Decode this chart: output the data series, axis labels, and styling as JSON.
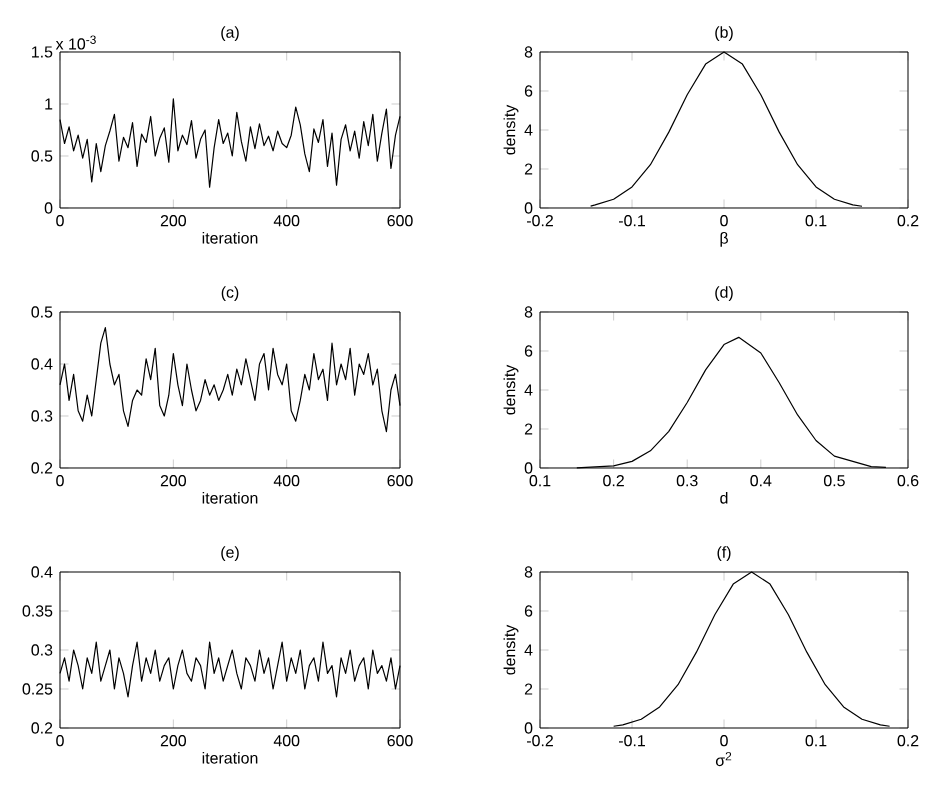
{
  "chart_data": [
    {
      "type": "line",
      "title": "(a)",
      "xlabel": "iteration",
      "annotations": [
        "x 10$^{-3}$"
      ],
      "xlim": [
        0,
        600
      ],
      "ylim": [
        0,
        1.5
      ],
      "xticks": [
        0,
        200,
        400,
        600
      ],
      "yticks": [
        0,
        0.5,
        1,
        1.5
      ],
      "series": [
        {
          "color": "#000000",
          "x": [
            0,
            8,
            16,
            24,
            32,
            40,
            48,
            56,
            64,
            72,
            80,
            88,
            96,
            104,
            112,
            120,
            128,
            136,
            144,
            152,
            160,
            168,
            176,
            184,
            192,
            200,
            208,
            216,
            224,
            232,
            240,
            248,
            256,
            264,
            272,
            280,
            288,
            296,
            304,
            312,
            320,
            328,
            336,
            344,
            352,
            360,
            368,
            376,
            384,
            392,
            400,
            408,
            416,
            424,
            432,
            440,
            448,
            456,
            464,
            472,
            480,
            488,
            496,
            504,
            512,
            520,
            528,
            536,
            544,
            552,
            560,
            568,
            576,
            584,
            592,
            600
          ],
          "values": [
            0.85,
            0.62,
            0.78,
            0.55,
            0.7,
            0.48,
            0.66,
            0.25,
            0.62,
            0.35,
            0.6,
            0.74,
            0.9,
            0.45,
            0.68,
            0.58,
            0.82,
            0.4,
            0.71,
            0.63,
            0.88,
            0.5,
            0.67,
            0.77,
            0.44,
            1.05,
            0.55,
            0.7,
            0.61,
            0.84,
            0.48,
            0.66,
            0.75,
            0.2,
            0.58,
            0.85,
            0.62,
            0.72,
            0.5,
            0.92,
            0.64,
            0.45,
            0.78,
            0.57,
            0.81,
            0.6,
            0.69,
            0.55,
            0.74,
            0.62,
            0.58,
            0.7,
            0.97,
            0.8,
            0.52,
            0.35,
            0.76,
            0.63,
            0.85,
            0.4,
            0.72,
            0.22,
            0.66,
            0.8,
            0.55,
            0.74,
            0.48,
            0.83,
            0.6,
            0.9,
            0.45,
            0.72,
            0.95,
            0.38,
            0.7,
            0.88
          ]
        }
      ]
    },
    {
      "type": "line",
      "title": "(b)",
      "xlabel": "β",
      "ylabel": "density",
      "xlim": [
        -0.2,
        0.2
      ],
      "ylim": [
        0,
        8
      ],
      "xticks": [
        -0.2,
        -0.1,
        0,
        0.1,
        0.2
      ],
      "yticks": [
        0,
        2,
        4,
        6,
        8
      ],
      "series": [
        {
          "color": "#000000",
          "x": [
            -0.145,
            -0.14,
            -0.12,
            -0.1,
            -0.08,
            -0.06,
            -0.04,
            -0.02,
            0,
            0.02,
            0.04,
            0.06,
            0.08,
            0.1,
            0.12,
            0.14,
            0.15
          ],
          "values": [
            0.1,
            0.16,
            0.45,
            1.08,
            2.22,
            3.89,
            5.81,
            7.38,
            8,
            7.38,
            5.81,
            3.89,
            2.22,
            1.08,
            0.45,
            0.16,
            0.09
          ]
        }
      ]
    },
    {
      "type": "line",
      "title": "(c)",
      "xlabel": "iteration",
      "xlim": [
        0,
        600
      ],
      "ylim": [
        0.2,
        0.5
      ],
      "xticks": [
        0,
        200,
        400,
        600
      ],
      "yticks": [
        0.2,
        0.3,
        0.4,
        0.5
      ],
      "series": [
        {
          "color": "#000000",
          "x": [
            0,
            8,
            16,
            24,
            32,
            40,
            48,
            56,
            64,
            72,
            80,
            88,
            96,
            104,
            112,
            120,
            128,
            136,
            144,
            152,
            160,
            168,
            176,
            184,
            192,
            200,
            208,
            216,
            224,
            232,
            240,
            248,
            256,
            264,
            272,
            280,
            288,
            296,
            304,
            312,
            320,
            328,
            336,
            344,
            352,
            360,
            368,
            376,
            384,
            392,
            400,
            408,
            416,
            424,
            432,
            440,
            448,
            456,
            464,
            472,
            480,
            488,
            496,
            504,
            512,
            520,
            528,
            536,
            544,
            552,
            560,
            568,
            576,
            584,
            592,
            600
          ],
          "values": [
            0.36,
            0.4,
            0.33,
            0.38,
            0.31,
            0.29,
            0.34,
            0.3,
            0.37,
            0.44,
            0.47,
            0.4,
            0.36,
            0.38,
            0.31,
            0.28,
            0.33,
            0.35,
            0.34,
            0.41,
            0.37,
            0.43,
            0.32,
            0.3,
            0.34,
            0.42,
            0.36,
            0.32,
            0.4,
            0.35,
            0.31,
            0.33,
            0.37,
            0.34,
            0.36,
            0.33,
            0.35,
            0.38,
            0.34,
            0.39,
            0.36,
            0.41,
            0.37,
            0.33,
            0.4,
            0.42,
            0.35,
            0.43,
            0.38,
            0.36,
            0.4,
            0.31,
            0.29,
            0.33,
            0.38,
            0.35,
            0.42,
            0.37,
            0.39,
            0.33,
            0.44,
            0.36,
            0.4,
            0.37,
            0.43,
            0.34,
            0.4,
            0.38,
            0.42,
            0.36,
            0.39,
            0.31,
            0.27,
            0.35,
            0.38,
            0.32
          ]
        }
      ]
    },
    {
      "type": "line",
      "title": "(d)",
      "xlabel": "d",
      "ylabel": "density",
      "xlim": [
        0.1,
        0.6
      ],
      "ylim": [
        0,
        8
      ],
      "xticks": [
        0.1,
        0.2,
        0.3,
        0.4,
        0.5,
        0.6
      ],
      "yticks": [
        0,
        2,
        4,
        6,
        8
      ],
      "series": [
        {
          "color": "#000000",
          "x": [
            0.15,
            0.2,
            0.225,
            0.25,
            0.275,
            0.3,
            0.325,
            0.35,
            0.37,
            0.4,
            0.425,
            0.45,
            0.475,
            0.5,
            0.55,
            0.57
          ],
          "values": [
            0.01,
            0.11,
            0.34,
            0.88,
            1.88,
            3.36,
            5.03,
            6.33,
            6.7,
            5.9,
            4.37,
            2.72,
            1.41,
            0.61,
            0.07,
            0.03
          ]
        }
      ]
    },
    {
      "type": "line",
      "title": "(e)",
      "xlabel": "iteration",
      "xlim": [
        0,
        600
      ],
      "ylim": [
        0.2,
        0.4
      ],
      "xticks": [
        0,
        200,
        400,
        600
      ],
      "yticks": [
        0.2,
        0.25,
        0.3,
        0.35,
        0.4
      ],
      "series": [
        {
          "color": "#000000",
          "x": [
            0,
            8,
            16,
            24,
            32,
            40,
            48,
            56,
            64,
            72,
            80,
            88,
            96,
            104,
            112,
            120,
            128,
            136,
            144,
            152,
            160,
            168,
            176,
            184,
            192,
            200,
            208,
            216,
            224,
            232,
            240,
            248,
            256,
            264,
            272,
            280,
            288,
            296,
            304,
            312,
            320,
            328,
            336,
            344,
            352,
            360,
            368,
            376,
            384,
            392,
            400,
            408,
            416,
            424,
            432,
            440,
            448,
            456,
            464,
            472,
            480,
            488,
            496,
            504,
            512,
            520,
            528,
            536,
            544,
            552,
            560,
            568,
            576,
            584,
            592,
            600
          ],
          "values": [
            0.27,
            0.29,
            0.26,
            0.3,
            0.28,
            0.25,
            0.29,
            0.27,
            0.31,
            0.26,
            0.28,
            0.3,
            0.25,
            0.29,
            0.27,
            0.24,
            0.28,
            0.31,
            0.26,
            0.29,
            0.27,
            0.3,
            0.26,
            0.28,
            0.29,
            0.25,
            0.28,
            0.3,
            0.27,
            0.26,
            0.29,
            0.28,
            0.25,
            0.31,
            0.27,
            0.29,
            0.26,
            0.28,
            0.3,
            0.27,
            0.25,
            0.29,
            0.28,
            0.26,
            0.3,
            0.27,
            0.29,
            0.25,
            0.28,
            0.31,
            0.26,
            0.29,
            0.27,
            0.3,
            0.25,
            0.28,
            0.29,
            0.26,
            0.31,
            0.27,
            0.28,
            0.24,
            0.29,
            0.27,
            0.3,
            0.26,
            0.28,
            0.29,
            0.25,
            0.3,
            0.27,
            0.28,
            0.26,
            0.29,
            0.25,
            0.28
          ]
        }
      ]
    },
    {
      "type": "line",
      "title": "(f)",
      "xlabel": "σ$^{2}$",
      "ylabel": "density",
      "xlim": [
        -0.2,
        0.2
      ],
      "ylim": [
        0,
        8
      ],
      "xticks": [
        -0.2,
        -0.1,
        0,
        0.1,
        0.2
      ],
      "yticks": [
        0,
        2,
        4,
        6,
        8
      ],
      "series": [
        {
          "color": "#000000",
          "x": [
            -0.12,
            -0.11,
            -0.09,
            -0.07,
            -0.05,
            -0.03,
            -0.01,
            0.01,
            0.03,
            0.05,
            0.07,
            0.09,
            0.11,
            0.13,
            0.15,
            0.17,
            0.18
          ],
          "values": [
            0.09,
            0.16,
            0.45,
            1.08,
            2.22,
            3.89,
            5.81,
            7.38,
            8,
            7.38,
            5.81,
            3.89,
            2.22,
            1.08,
            0.45,
            0.16,
            0.09
          ]
        }
      ]
    }
  ]
}
